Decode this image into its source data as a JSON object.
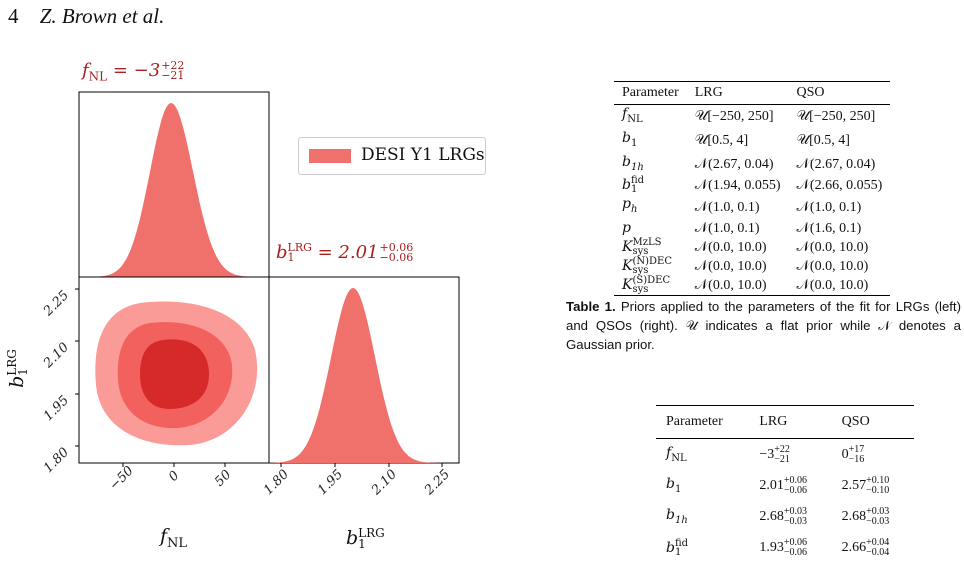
{
  "running_head": {
    "page_number": "4",
    "authors": "Z. Brown et al."
  },
  "figure": {
    "panel_titles": {
      "fnl": "f_NL = −3^{+22}_{−21}",
      "b1": "b_1^LRG = 2.01^{+0.06}_{−0.06}"
    },
    "legend_label": "DESI Y1 LRGs",
    "fill_color": "#f0716c",
    "contour_colors": [
      "#fb9b98",
      "#f2615e",
      "#d52a29"
    ],
    "xlabel_fnl": "f_NL",
    "label_b1": "b_1^LRG",
    "fnl_ticks": [
      "−50",
      "0",
      "50"
    ],
    "b1_ticks": [
      "1.80",
      "1.95",
      "2.10",
      "2.25"
    ]
  },
  "chart_data": [
    {
      "type": "area",
      "title": "f_NL = −3^{+22}_{−21}",
      "series": [
        {
          "name": "DESI Y1 LRGs",
          "peak": -3,
          "sigma_plus": 22,
          "sigma_minus": 21
        }
      ],
      "xlim": [
        -95,
        95
      ]
    },
    {
      "type": "area",
      "title": "b_1^LRG = 2.01^{+0.06}_{−0.06}",
      "series": [
        {
          "name": "DESI Y1 LRGs",
          "peak": 2.01,
          "sigma_plus": 0.06,
          "sigma_minus": 0.06
        }
      ],
      "xlim": [
        1.78,
        2.3
      ]
    },
    {
      "type": "scatter",
      "xlabel": "f_NL",
      "ylabel": "b_1^LRG",
      "xlim": [
        -95,
        95
      ],
      "ylim": [
        1.78,
        2.3
      ],
      "series": [
        {
          "name": "DESI Y1 LRGs",
          "center": [
            -3,
            2.01
          ]
        }
      ]
    }
  ],
  "table1": {
    "headers": [
      "Parameter",
      "LRG",
      "QSO"
    ],
    "rows": [
      [
        "f_NL",
        "𝒰[−250, 250]",
        "𝒰[−250, 250]"
      ],
      [
        "b_1",
        "𝒰[0.5, 4]",
        "𝒰[0.5, 4]"
      ],
      [
        "b_1h",
        "𝒩(2.67, 0.04)",
        "𝒩(2.67, 0.04)"
      ],
      [
        "b_1^fid",
        "𝒩(1.94, 0.055)",
        "𝒩(2.66, 0.055)"
      ],
      [
        "p_h",
        "𝒩(1.0, 0.1)",
        "𝒩(1.0, 0.1)"
      ],
      [
        "p",
        "𝒩(1.0, 0.1)",
        "𝒩(1.6, 0.1)"
      ],
      [
        "K_sys^MzLS",
        "𝒩(0.0, 10.0)",
        "𝒩(0.0, 10.0)"
      ],
      [
        "K_sys^(N)DEC",
        "𝒩(0.0, 10.0)",
        "𝒩(0.0, 10.0)"
      ],
      [
        "K_sys^(S)DEC",
        "𝒩(0.0, 10.0)",
        "𝒩(0.0, 10.0)"
      ]
    ],
    "caption_label": "Table 1.",
    "caption_text": "Priors applied to the parameters of the fit for LRGs (left) and QSOs (right). 𝒰 indicates a flat prior while 𝒩 denotes a Gaussian prior."
  },
  "table2": {
    "headers": [
      "Parameter",
      "LRG",
      "QSO"
    ],
    "rows": [
      [
        "f_NL",
        "−3^{+22}_{−21}",
        "0^{+17}_{−16}"
      ],
      [
        "b_1",
        "2.01^{+0.06}_{−0.06}",
        "2.57^{+0.10}_{−0.10}"
      ],
      [
        "b_1h",
        "2.68^{+0.03}_{−0.03}",
        "2.68^{+0.03}_{−0.03}"
      ],
      [
        "b_1^fid",
        "1.93^{+0.06}_{−0.06}",
        "2.66^{+0.04}_{−0.04}"
      ]
    ]
  }
}
